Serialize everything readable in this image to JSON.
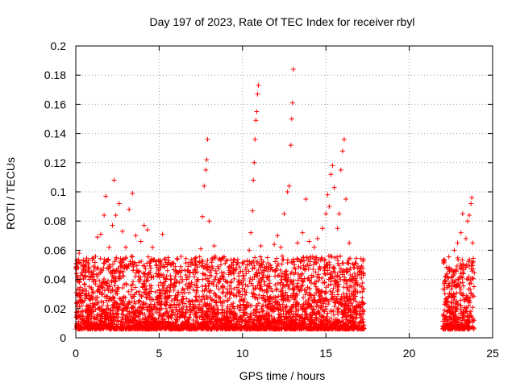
{
  "chart_data": {
    "type": "scatter",
    "title": "Day 197 of 2023, Rate Of TEC Index for receiver rbyl",
    "xlabel": "GPS time / hours",
    "ylabel": "ROTI / TECUs",
    "xlim": [
      0,
      25
    ],
    "ylim": [
      0,
      0.2
    ],
    "x_ticks": [
      0,
      5,
      10,
      15,
      20,
      25
    ],
    "x_tick_labels": [
      "0",
      "5",
      "10",
      "15",
      "20",
      "25"
    ],
    "y_ticks": [
      0,
      0.02,
      0.04,
      0.06,
      0.08,
      0.1,
      0.12,
      0.14,
      0.16,
      0.18,
      0.2
    ],
    "y_tick_labels": [
      "0",
      "0.02",
      "0.04",
      "0.06",
      "0.08",
      "0.1",
      "0.12",
      "0.14",
      "0.16",
      "0.18",
      "0.2"
    ],
    "grid": true,
    "marker": "+",
    "color": "#ff0000",
    "data_coverage": [
      {
        "from_hour": 0,
        "to_hour": 17.3
      },
      {
        "from_hour": 22.0,
        "to_hour": 23.9
      }
    ],
    "series": [
      {
        "name": "ROTI",
        "points": [
          [
            0.1,
            0.051
          ],
          [
            0.2,
            0.058
          ],
          [
            0.4,
            0.043
          ],
          [
            0.6,
            0.046
          ],
          [
            0.8,
            0.048
          ],
          [
            1.1,
            0.04
          ],
          [
            1.3,
            0.069
          ],
          [
            1.5,
            0.071
          ],
          [
            1.7,
            0.084
          ],
          [
            1.8,
            0.097
          ],
          [
            2.0,
            0.062
          ],
          [
            2.2,
            0.077
          ],
          [
            2.3,
            0.108
          ],
          [
            2.4,
            0.084
          ],
          [
            2.6,
            0.092
          ],
          [
            2.8,
            0.073
          ],
          [
            3.0,
            0.062
          ],
          [
            3.2,
            0.088
          ],
          [
            3.4,
            0.099
          ],
          [
            3.6,
            0.07
          ],
          [
            3.9,
            0.066
          ],
          [
            4.1,
            0.077
          ],
          [
            4.3,
            0.074
          ],
          [
            4.6,
            0.062
          ],
          [
            5.2,
            0.071
          ],
          [
            5.5,
            0.05
          ],
          [
            6.0,
            0.046
          ],
          [
            6.8,
            0.042
          ],
          [
            7.2,
            0.055
          ],
          [
            7.5,
            0.061
          ],
          [
            7.6,
            0.083
          ],
          [
            7.7,
            0.104
          ],
          [
            7.8,
            0.115
          ],
          [
            7.85,
            0.122
          ],
          [
            7.9,
            0.136
          ],
          [
            8.0,
            0.08
          ],
          [
            8.3,
            0.063
          ],
          [
            8.7,
            0.05
          ],
          [
            9.2,
            0.045
          ],
          [
            9.8,
            0.038
          ],
          [
            10.2,
            0.048
          ],
          [
            10.4,
            0.06
          ],
          [
            10.5,
            0.072
          ],
          [
            10.6,
            0.087
          ],
          [
            10.65,
            0.108
          ],
          [
            10.7,
            0.12
          ],
          [
            10.75,
            0.136
          ],
          [
            10.8,
            0.149
          ],
          [
            10.85,
            0.155
          ],
          [
            10.9,
            0.167
          ],
          [
            10.95,
            0.173
          ],
          [
            11.1,
            0.063
          ],
          [
            11.5,
            0.055
          ],
          [
            11.9,
            0.064
          ],
          [
            12.1,
            0.07
          ],
          [
            12.3,
            0.062
          ],
          [
            12.5,
            0.085
          ],
          [
            12.7,
            0.1
          ],
          [
            12.8,
            0.104
          ],
          [
            12.9,
            0.132
          ],
          [
            12.95,
            0.15
          ],
          [
            13.0,
            0.161
          ],
          [
            13.05,
            0.184
          ],
          [
            13.3,
            0.065
          ],
          [
            13.6,
            0.072
          ],
          [
            13.8,
            0.095
          ],
          [
            14.0,
            0.066
          ],
          [
            14.3,
            0.062
          ],
          [
            14.5,
            0.068
          ],
          [
            14.8,
            0.075
          ],
          [
            15.0,
            0.085
          ],
          [
            15.1,
            0.098
          ],
          [
            15.2,
            0.09
          ],
          [
            15.3,
            0.112
          ],
          [
            15.4,
            0.118
          ],
          [
            15.5,
            0.103
          ],
          [
            15.7,
            0.075
          ],
          [
            15.8,
            0.085
          ],
          [
            15.9,
            0.115
          ],
          [
            16.0,
            0.128
          ],
          [
            16.1,
            0.136
          ],
          [
            16.2,
            0.095
          ],
          [
            16.4,
            0.065
          ],
          [
            16.7,
            0.05
          ],
          [
            17.0,
            0.045
          ],
          [
            22.1,
            0.052
          ],
          [
            22.4,
            0.048
          ],
          [
            22.7,
            0.06
          ],
          [
            22.9,
            0.065
          ],
          [
            23.1,
            0.072
          ],
          [
            23.2,
            0.085
          ],
          [
            23.4,
            0.068
          ],
          [
            23.5,
            0.08
          ],
          [
            23.6,
            0.084
          ],
          [
            23.7,
            0.092
          ],
          [
            23.75,
            0.096
          ],
          [
            23.8,
            0.065
          ]
        ]
      }
    ]
  }
}
